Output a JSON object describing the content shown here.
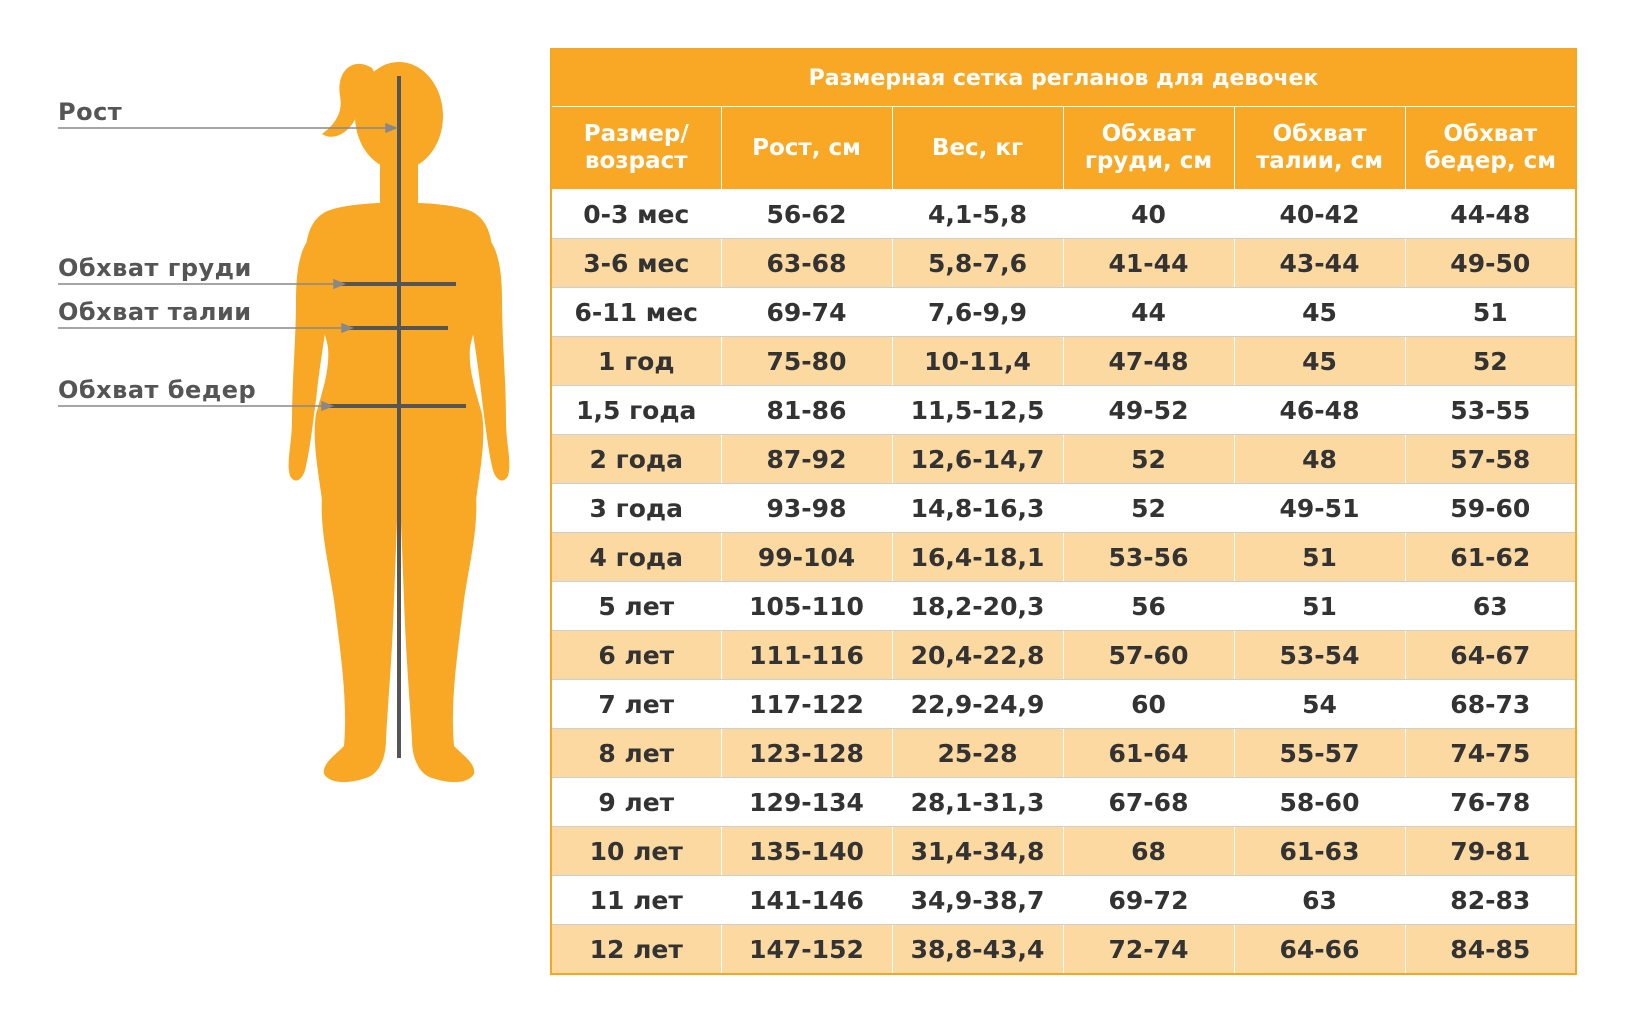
{
  "figure": {
    "labels": {
      "height": "Рост",
      "chest": "Обхват груди",
      "waist": "Обхват талии",
      "hips": "Обхват бедер"
    },
    "colors": {
      "body": "#F9A825",
      "lines": "#555555",
      "pointer": "#888888"
    }
  },
  "table": {
    "title": "Размерная сетка регланов для девочек",
    "headers": [
      "Размер/ возраст",
      "Рост, см",
      "Вес, кг",
      "Обхват груди, см",
      "Обхват талии, см",
      "Обхват бедер, см"
    ],
    "rows": [
      [
        "0-3 мес",
        "56-62",
        "4,1-5,8",
        "40",
        "40-42",
        "44-48"
      ],
      [
        "3-6 мес",
        "63-68",
        "5,8-7,6",
        "41-44",
        "43-44",
        "49-50"
      ],
      [
        "6-11 мес",
        "69-74",
        "7,6-9,9",
        "44",
        "45",
        "51"
      ],
      [
        "1 год",
        "75-80",
        "10-11,4",
        "47-48",
        "45",
        "52"
      ],
      [
        "1,5 года",
        "81-86",
        "11,5-12,5",
        "49-52",
        "46-48",
        "53-55"
      ],
      [
        "2 года",
        "87-92",
        "12,6-14,7",
        "52",
        "48",
        "57-58"
      ],
      [
        "3 года",
        "93-98",
        "14,8-16,3",
        "52",
        "49-51",
        "59-60"
      ],
      [
        "4 года",
        "99-104",
        "16,4-18,1",
        "53-56",
        "51",
        "61-62"
      ],
      [
        "5 лет",
        "105-110",
        "18,2-20,3",
        "56",
        "51",
        "63"
      ],
      [
        "6 лет",
        "111-116",
        "20,4-22,8",
        "57-60",
        "53-54",
        "64-67"
      ],
      [
        "7 лет",
        "117-122",
        "22,9-24,9",
        "60",
        "54",
        "68-73"
      ],
      [
        "8 лет",
        "123-128",
        "25-28",
        "61-64",
        "55-57",
        "74-75"
      ],
      [
        "9 лет",
        "129-134",
        "28,1-31,3",
        "67-68",
        "58-60",
        "76-78"
      ],
      [
        "10 лет",
        "135-140",
        "31,4-34,8",
        "68",
        "61-63",
        "79-81"
      ],
      [
        "11 лет",
        "141-146",
        "34,9-38,7",
        "69-72",
        "63",
        "82-83"
      ],
      [
        "12 лет",
        "147-152",
        "38,8-43,4",
        "72-74",
        "64-66",
        "84-85"
      ]
    ],
    "colors": {
      "header": "#F9A825",
      "stripe": "#FDD9A2"
    }
  }
}
